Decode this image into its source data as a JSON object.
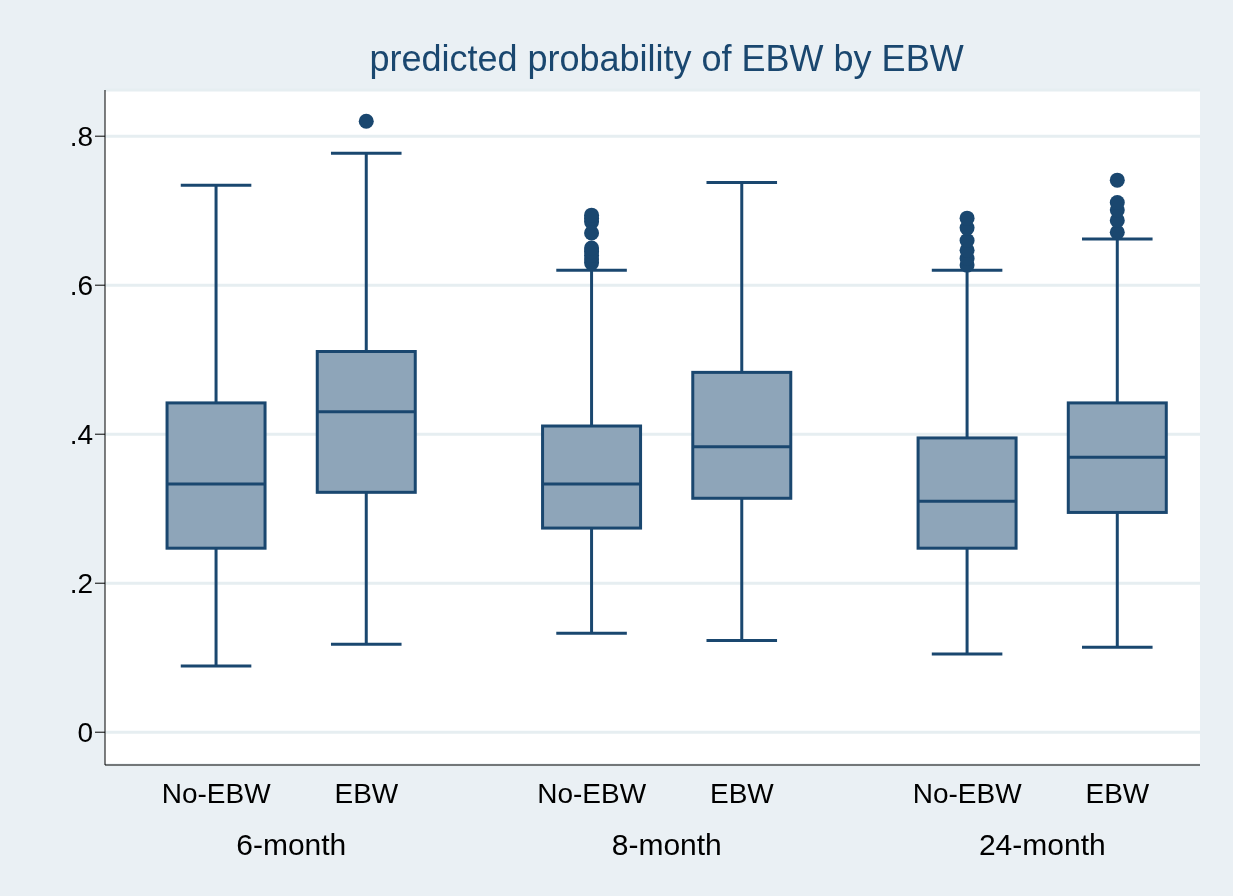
{
  "chart_data": {
    "type": "box",
    "title": "predicted probability of EBW by EBW",
    "categories": [
      "No-EBW",
      "EBW",
      "No-EBW",
      "EBW",
      "No-EBW",
      "EBW"
    ],
    "annotations": [
      "6-month",
      "8-month",
      "24-month"
    ],
    "color": "#8ea5b9",
    "boxes": [
      {
        "low": 0.089,
        "q1": 0.247,
        "median": 0.333,
        "q3": 0.442,
        "high": 0.734
      },
      {
        "low": 0.118,
        "q1": 0.322,
        "median": 0.43,
        "q3": 0.511,
        "high": 0.777,
        "outliers": [
          0.82
        ]
      },
      {
        "low": 0.133,
        "q1": 0.274,
        "median": 0.333,
        "q3": 0.411,
        "high": 0.62,
        "outliers": [
          0.63,
          0.635,
          0.64,
          0.645,
          0.65,
          0.67,
          0.685,
          0.69,
          0.694
        ]
      },
      {
        "low": 0.123,
        "q1": 0.314,
        "median": 0.383,
        "q3": 0.483,
        "high": 0.738
      },
      {
        "low": 0.105,
        "q1": 0.247,
        "median": 0.31,
        "q3": 0.395,
        "high": 0.62,
        "outliers": [
          0.627,
          0.636,
          0.647,
          0.66,
          0.677,
          0.69
        ]
      },
      {
        "low": 0.114,
        "q1": 0.295,
        "median": 0.369,
        "q3": 0.442,
        "high": 0.662,
        "outliers": [
          0.671,
          0.687,
          0.701,
          0.711,
          0.741
        ]
      }
    ],
    "ylim": [
      -0.044,
      0.862
    ],
    "yticks": [
      0,
      {
        "value": 0.2,
        "label": ".2"
      },
      {
        "value": 0.4,
        "label": ".4"
      },
      {
        "value": 0.6,
        "label": ".6"
      },
      {
        "value": 0.8,
        "label": ".8"
      }
    ],
    "grid": "y"
  }
}
